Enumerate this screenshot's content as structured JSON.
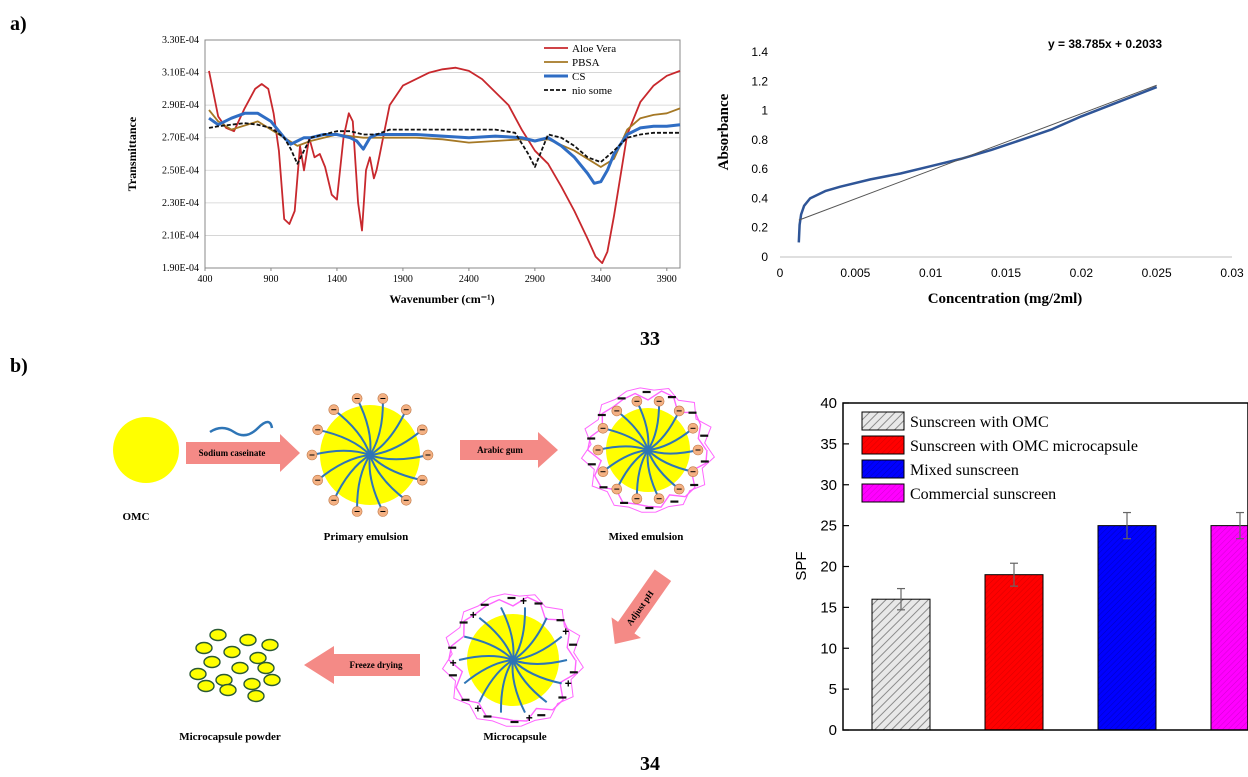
{
  "panels": {
    "a": "a)",
    "b": "b)",
    "fig33": "33",
    "fig34": "34"
  },
  "chart_data": [
    {
      "type": "line",
      "xlabel": "Wavenumber (cm⁻¹)",
      "ylabel": "Transmittance",
      "xlim": [
        400,
        4000
      ],
      "ylim": [
        0.00019,
        0.00033
      ],
      "xticks": [
        "400",
        "900",
        "1400",
        "1900",
        "2400",
        "2900",
        "3400",
        "3900"
      ],
      "yticks": [
        "1.90E-04",
        "2.10E-04",
        "2.30E-04",
        "2.50E-04",
        "2.70E-04",
        "2.90E-04",
        "3.10E-04",
        "3.30E-04"
      ],
      "legend_position": "top-right",
      "series": [
        {
          "name": "Aloe Vera",
          "color": "#c8282d",
          "style": "solid",
          "x": [
            430,
            500,
            560,
            620,
            700,
            780,
            830,
            880,
            920,
            960,
            1000,
            1040,
            1080,
            1120,
            1150,
            1190,
            1230,
            1270,
            1310,
            1360,
            1400,
            1450,
            1490,
            1520,
            1540,
            1560,
            1590,
            1620,
            1650,
            1680,
            1700,
            1720,
            1750,
            1800,
            1900,
            2000,
            2100,
            2200,
            2300,
            2400,
            2500,
            2600,
            2700,
            2800,
            2900,
            3000,
            3100,
            3200,
            3300,
            3360,
            3410,
            3450,
            3500,
            3600,
            3700,
            3800,
            3900,
            4000
          ],
          "y": [
            0.000311,
            0.000283,
            0.000276,
            0.000274,
            0.000288,
            0.0003,
            0.000303,
            0.0003,
            0.000285,
            0.000262,
            0.00022,
            0.000217,
            0.000225,
            0.000265,
            0.00025,
            0.00027,
            0.000258,
            0.00026,
            0.000252,
            0.000235,
            0.000232,
            0.00027,
            0.000285,
            0.00028,
            0.000255,
            0.00023,
            0.000213,
            0.00025,
            0.000258,
            0.000245,
            0.00025,
            0.000258,
            0.00027,
            0.00029,
            0.000302,
            0.000306,
            0.00031,
            0.000312,
            0.000313,
            0.000311,
            0.000306,
            0.000298,
            0.00029,
            0.000275,
            0.000262,
            0.000254,
            0.00024,
            0.000225,
            0.000208,
            0.000197,
            0.000193,
            0.0002,
            0.000222,
            0.000272,
            0.000292,
            0.000302,
            0.000308,
            0.000311
          ]
        },
        {
          "name": "PBSA",
          "color": "#a57825",
          "style": "solid",
          "x": [
            430,
            500,
            600,
            800,
            1000,
            1100,
            1200,
            1400,
            1600,
            1800,
            2000,
            2200,
            2400,
            2600,
            2800,
            2900,
            3000,
            3200,
            3400,
            3500,
            3600,
            3700,
            3800,
            3900,
            4000
          ],
          "y": [
            0.000287,
            0.00028,
            0.000275,
            0.00028,
            0.00027,
            0.000265,
            0.000268,
            0.000272,
            0.00027,
            0.00027,
            0.00027,
            0.000269,
            0.000267,
            0.000268,
            0.000269,
            0.000268,
            0.000269,
            0.000262,
            0.000252,
            0.000257,
            0.000275,
            0.000282,
            0.000284,
            0.000285,
            0.000288
          ]
        },
        {
          "name": "CS",
          "color": "#2f6dc4",
          "style": "solid",
          "x": [
            430,
            500,
            600,
            700,
            800,
            900,
            1000,
            1050,
            1100,
            1150,
            1200,
            1300,
            1400,
            1500,
            1550,
            1600,
            1650,
            1700,
            1800,
            2000,
            2200,
            2400,
            2600,
            2800,
            2900,
            3000,
            3100,
            3200,
            3300,
            3350,
            3400,
            3450,
            3500,
            3600,
            3700,
            3800,
            3900,
            4000
          ],
          "y": [
            0.000282,
            0.000278,
            0.000282,
            0.000285,
            0.000285,
            0.00028,
            0.00027,
            0.000266,
            0.000268,
            0.00027,
            0.00027,
            0.000272,
            0.000272,
            0.00027,
            0.000268,
            0.000263,
            0.00027,
            0.000272,
            0.000272,
            0.000272,
            0.000271,
            0.00027,
            0.000271,
            0.00027,
            0.000268,
            0.00027,
            0.000265,
            0.000258,
            0.000248,
            0.000242,
            0.000243,
            0.00025,
            0.00026,
            0.000272,
            0.000276,
            0.000277,
            0.000277,
            0.000278
          ]
        },
        {
          "name": "nio some",
          "color": "#111111",
          "style": "dashed",
          "x": [
            430,
            500,
            600,
            700,
            800,
            900,
            1000,
            1050,
            1100,
            1150,
            1200,
            1300,
            1400,
            1500,
            1600,
            1700,
            1800,
            2000,
            2200,
            2400,
            2600,
            2750,
            2850,
            2900,
            2950,
            3000,
            3100,
            3200,
            3300,
            3400,
            3500,
            3600,
            3700,
            3800,
            3900,
            4000
          ],
          "y": [
            0.000276,
            0.000277,
            0.000278,
            0.000279,
            0.000278,
            0.000276,
            0.00027,
            0.000263,
            0.000254,
            0.000262,
            0.00027,
            0.000272,
            0.000274,
            0.000274,
            0.000272,
            0.000272,
            0.000275,
            0.000275,
            0.000275,
            0.000275,
            0.000275,
            0.000273,
            0.00026,
            0.000252,
            0.000262,
            0.000272,
            0.00027,
            0.000265,
            0.000258,
            0.000255,
            0.000262,
            0.00027,
            0.000272,
            0.000273,
            0.000273,
            0.000273
          ]
        }
      ]
    },
    {
      "type": "line",
      "xlabel": "Concentration (mg/2ml)",
      "ylabel": "Absorbance",
      "xlim": [
        0,
        0.03
      ],
      "ylim": [
        0,
        1.4
      ],
      "xticks": [
        "0",
        "0.005",
        "0.01",
        "0.015",
        "0.02",
        "0.025",
        "0.03"
      ],
      "yticks": [
        "0",
        "0.2",
        "0.4",
        "0.6",
        "0.8",
        "1",
        "1.2",
        "1.4"
      ],
      "annotation": "y = 38.785x + 0.2033",
      "series": [
        {
          "color": "#2f5597",
          "style": "solid",
          "x": [
            0.00125,
            0.0013,
            0.0014,
            0.0016,
            0.002,
            0.003,
            0.004,
            0.006,
            0.008,
            0.01,
            0.012,
            0.014,
            0.016,
            0.018,
            0.02,
            0.022,
            0.025
          ],
          "y": [
            0.1,
            0.22,
            0.29,
            0.35,
            0.4,
            0.45,
            0.48,
            0.53,
            0.57,
            0.62,
            0.67,
            0.73,
            0.8,
            0.87,
            0.96,
            1.04,
            1.16
          ]
        },
        {
          "color": "#555555",
          "style": "thin",
          "trendline": [
            38.785,
            0.2033
          ],
          "x": [
            0.00125,
            0.025
          ]
        }
      ]
    },
    {
      "type": "bar",
      "ylabel": "SPF",
      "ylim": [
        0,
        40
      ],
      "yticks": [
        "0",
        "5",
        "10",
        "15",
        "20",
        "25",
        "30",
        "35",
        "40"
      ],
      "categories": [
        "Sunscreen with OMC",
        "Sunscreen with OMC microcapsule",
        "Mixed sunscreen",
        "Commercial sunscreen"
      ],
      "values": [
        16,
        19,
        25,
        25
      ],
      "errors": [
        1.3,
        1.4,
        1.6,
        1.6
      ],
      "colors": [
        "#d9d9d9",
        "#ff0000",
        "#0000ff",
        "#ff00ff"
      ],
      "legend_position": "top-left"
    }
  ],
  "diagram": {
    "labels": {
      "omc": "OMC",
      "primary": "Primary emulsion",
      "mixed": "Mixed emulsion",
      "micro": "Microcapsule",
      "powder": "Microcapsule powder"
    },
    "arrows": {
      "a1": "Sodium caseinate",
      "a2": "Arabic gum",
      "a3": "Adjust pH",
      "a4": "Freeze drying"
    },
    "colors": {
      "core": "#ffff00",
      "arrow": "#f48a86",
      "bead": "#f4b183",
      "chain": "#2e75b6",
      "shell": "#ff66ff"
    }
  }
}
